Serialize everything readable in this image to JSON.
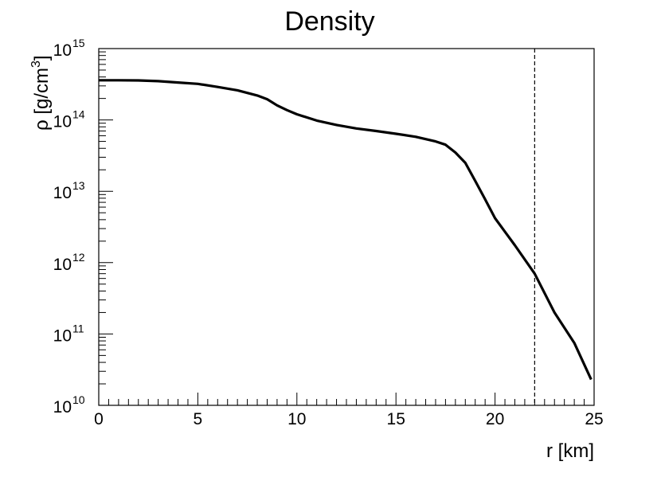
{
  "chart_data": {
    "type": "line",
    "title": "Density",
    "xlabel": "r [km]",
    "ylabel": "ρ [g/cm³]",
    "ylabel_main": "ρ [g/cm",
    "ylabel_sup": "3",
    "ylabel_end": "]",
    "xlim": [
      0,
      25
    ],
    "ylim": [
      10000000000.0,
      1000000000000000.0
    ],
    "yscale": "log",
    "grid": false,
    "x_ticks": [
      "0",
      "5",
      "10",
      "15",
      "20",
      "25"
    ],
    "y_tick_base": "10",
    "y_tick_exponents": [
      "10",
      "11",
      "12",
      "13",
      "14",
      "15"
    ],
    "series": [
      {
        "x": [
          0,
          1,
          2,
          3,
          4,
          5,
          6,
          7,
          8,
          8.5,
          9,
          9.5,
          10,
          11,
          12,
          13,
          14,
          15,
          16,
          17,
          17.5,
          18,
          18.5,
          19,
          19.5,
          20,
          21,
          22,
          23,
          24,
          24.85
        ],
        "y": [
          360000000000000.0,
          360000000000000.0,
          358000000000000.0,
          350000000000000.0,
          335000000000000.0,
          320000000000000.0,
          290000000000000.0,
          260000000000000.0,
          220000000000000.0,
          195000000000000.0,
          160000000000000.0,
          137000000000000.0,
          120000000000000.0,
          98000000000000.0,
          85000000000000.0,
          76000000000000.0,
          70000000000000.0,
          64000000000000.0,
          58000000000000.0,
          50000000000000.0,
          45000000000000.0,
          35000000000000.0,
          25000000000000.0,
          14000000000000.0,
          7700000000000.0,
          4200000000000.0,
          1750000000000.0,
          700000000000.0,
          200000000000.0,
          75000000000.0,
          23000000000.0
        ]
      }
    ],
    "annotations": [
      {
        "type": "vline",
        "x": 22,
        "style": "dashed"
      }
    ]
  }
}
